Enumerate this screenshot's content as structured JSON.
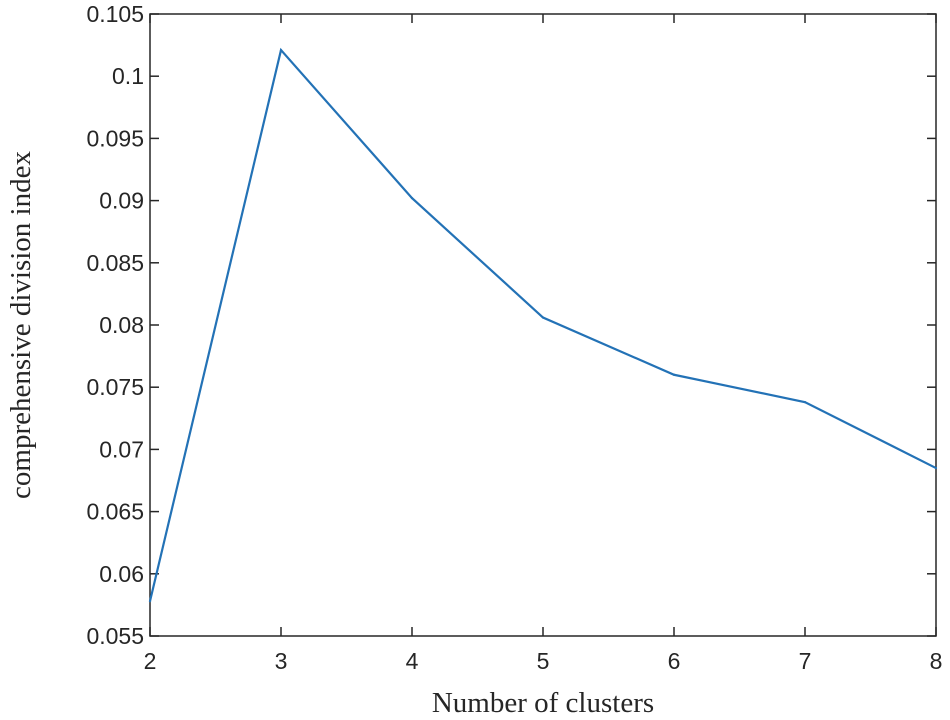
{
  "chart_data": {
    "type": "line",
    "title": "",
    "xlabel": "Number of clusters",
    "ylabel": "comprehensive division index",
    "xlim": [
      2,
      8
    ],
    "ylim": [
      0.055,
      0.105
    ],
    "x_ticks": [
      "2",
      "3",
      "4",
      "5",
      "6",
      "7",
      "8"
    ],
    "y_ticks": [
      "0.055",
      "0.06",
      "0.065",
      "0.07",
      "0.075",
      "0.08",
      "0.085",
      "0.09",
      "0.095",
      "0.1",
      "0.105"
    ],
    "grid": false,
    "legend": false,
    "series": [
      {
        "color": "#2372b6",
        "x": [
          2,
          3,
          4,
          5,
          6,
          7,
          8
        ],
        "y": [
          0.0578,
          0.1021,
          0.0902,
          0.0806,
          0.076,
          0.0738,
          0.0685
        ]
      }
    ]
  }
}
